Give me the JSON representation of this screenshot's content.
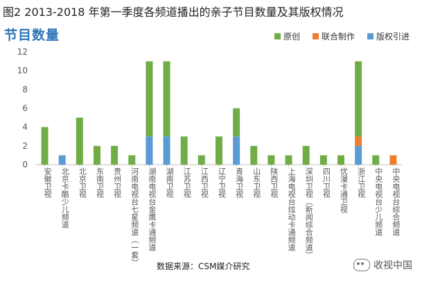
{
  "figure_title": "图2 2013-2018 年第一季度各频道播出的亲子节目数量及其版权情况",
  "source_text": "数据来源：CSM媒介研究",
  "watermark_text": "收视中国",
  "chart_data": {
    "type": "bar",
    "stacked": true,
    "title": "节目数量",
    "ylim": [
      0,
      12
    ],
    "yticks": [
      0,
      2,
      4,
      6,
      8,
      10,
      12
    ],
    "legend_position": "top-right",
    "grid": false,
    "categories": [
      "安徽卫视",
      "北京卡酷少儿频道",
      "北京卫视",
      "东南卫视",
      "贵州卫视",
      "河南电视台七星频道（一套）",
      "湖南电视台金鹰卡通频道",
      "湖南卫视",
      "江苏卫视",
      "江西卫视",
      "辽宁卫视",
      "青海卫视",
      "山东卫视",
      "陕西卫视",
      "上海电视台炫动卡通频道",
      "深圳卫视（新闻综合频道）",
      "四川卫视",
      "优漫卡通卫视",
      "浙江卫视",
      "中央电视台少儿频道",
      "中央电视台综合频道"
    ],
    "series": [
      {
        "name": "版权引进",
        "color": "#5b9bd5",
        "values": [
          0,
          1,
          0,
          0,
          0,
          0,
          3,
          3,
          0,
          0,
          0,
          3,
          0,
          0,
          0,
          0,
          0,
          0,
          2,
          0,
          0
        ]
      },
      {
        "name": "联合制作",
        "color": "#ed7d31",
        "values": [
          0,
          0,
          0,
          0,
          0,
          0,
          0,
          0,
          0,
          0,
          0,
          0,
          0,
          0,
          0,
          0,
          0,
          0,
          1,
          0,
          1
        ]
      },
      {
        "name": "原创",
        "color": "#70ad47",
        "values": [
          4,
          0,
          5,
          2,
          2,
          1,
          8,
          8,
          3,
          1,
          3,
          3,
          2,
          1,
          1,
          2,
          1,
          1,
          8,
          1,
          0
        ]
      }
    ],
    "legend_order": [
      "原创",
      "联合制作",
      "版权引进"
    ]
  }
}
